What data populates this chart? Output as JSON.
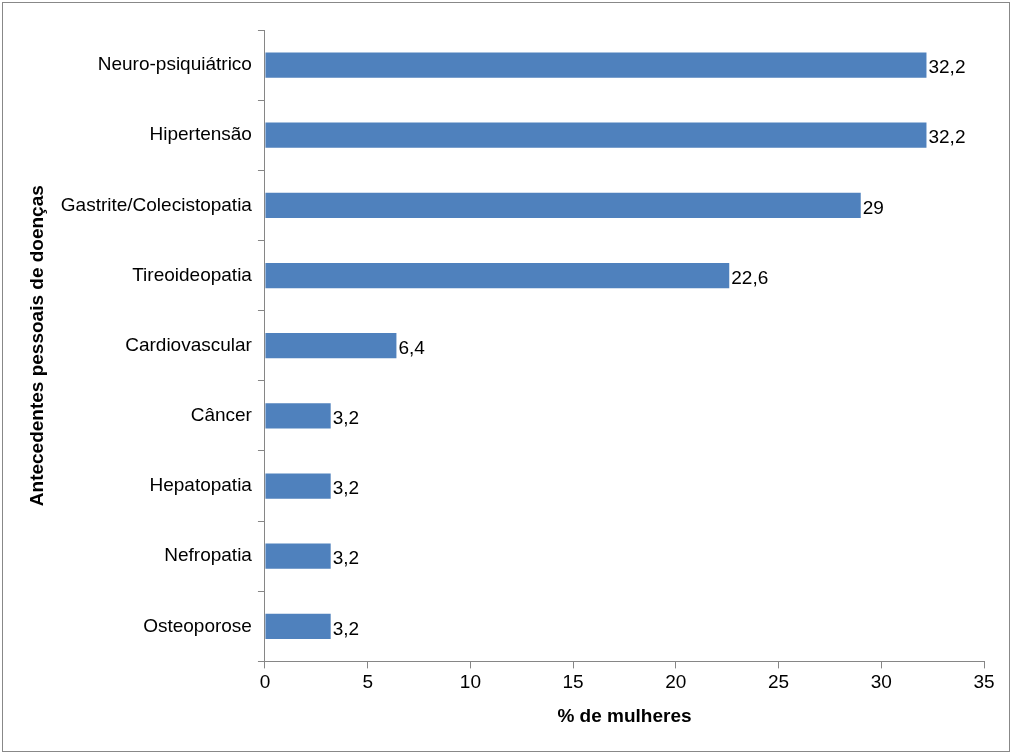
{
  "chart_data": {
    "type": "bar",
    "orientation": "horizontal",
    "xlabel": "% de mulheres",
    "ylabel": "Antecedentes pessoais de doenças",
    "categories": [
      "Neuro-psiquiátrico",
      "Hipertensão",
      "Gastrite/Colecistopatia",
      "Tireoideopatia",
      "Cardiovascular",
      "Câncer",
      "Hepatopatia",
      "Nefropatia",
      "Osteoporose"
    ],
    "values": [
      32.2,
      32.2,
      29,
      22.6,
      6.4,
      3.2,
      3.2,
      3.2,
      3.2
    ],
    "value_labels": [
      "32,2",
      "32,2",
      "29",
      "22,6",
      "6,4",
      "3,2",
      "3,2",
      "3,2",
      "3,2"
    ],
    "color": "#4f81bd",
    "xlim": [
      0,
      35
    ],
    "xticks": [
      0,
      5,
      10,
      15,
      20,
      25,
      30,
      35
    ],
    "grid": false,
    "legend": false
  }
}
